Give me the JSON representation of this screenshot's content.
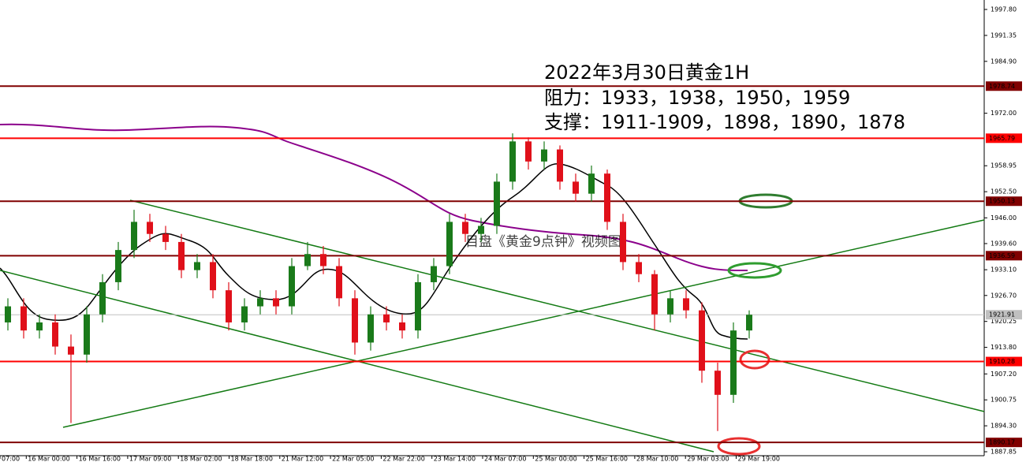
{
  "chart_data": {
    "type": "candlestick",
    "annotations": [
      "2022年3月30日黄金1H",
      "阻力：1933，1938，1950，1959",
      "支撑：1911-1909，1898，1890，1878"
    ],
    "watermark": "目盘《黄金9点钟》视频图",
    "categories": [
      "07:00",
      "16 Mar 00:00",
      "16 Mar 16:00",
      "17 Mar 09:00",
      "18 Mar 02:00",
      "18 Mar 18:00",
      "21 Mar 12:00",
      "22 Mar 05:00",
      "22 Mar 22:00",
      "23 Mar 14:00",
      "24 Mar 07:00",
      "25 Mar 00:00",
      "25 Mar 16:00",
      "28 Mar 10:00",
      "29 Mar 03:00",
      "29 Mar 19:00"
    ],
    "up_color": "#1a7a1a",
    "down_color": "#e0101a",
    "open": [
      1920,
      1924,
      1918,
      1920,
      1914,
      1912,
      1922,
      1930,
      1938,
      1945,
      1942,
      1940,
      1933,
      1935,
      1928,
      1920,
      1924,
      1926,
      1924,
      1934,
      1937,
      1934,
      1926,
      1915,
      1922,
      1920,
      1918,
      1930,
      1934,
      1945,
      1942,
      1944,
      1955,
      1965,
      1960,
      1963,
      1955,
      1952,
      1957,
      1945,
      1935,
      1932,
      1922,
      1926,
      1923,
      1908,
      1902,
      1918
    ],
    "high": [
      1926,
      1926,
      1922,
      1922,
      1917,
      1924,
      1932,
      1940,
      1948,
      1947,
      1944,
      1942,
      1937,
      1937,
      1930,
      1926,
      1928,
      1928,
      1936,
      1940,
      1939,
      1936,
      1928,
      1924,
      1924,
      1922,
      1932,
      1936,
      1947,
      1947,
      1946,
      1957,
      1967,
      1966,
      1965,
      1964,
      1957,
      1959,
      1958,
      1947,
      1937,
      1933,
      1928,
      1928,
      1925,
      1910,
      1920,
      1923
    ],
    "low": [
      1918,
      1916,
      1916,
      1912,
      1895,
      1910,
      1920,
      1928,
      1936,
      1940,
      1938,
      1931,
      1931,
      1926,
      1918,
      1918,
      1922,
      1922,
      1922,
      1933,
      1932,
      1924,
      1912,
      1913,
      1918,
      1916,
      1916,
      1928,
      1932,
      1940,
      1940,
      1942,
      1953,
      1958,
      1958,
      1953,
      1950,
      1950,
      1943,
      1933,
      1930,
      1918,
      1920,
      1921,
      1905,
      1893,
      1900,
      1916
    ],
    "close": [
      1924,
      1918,
      1920,
      1914,
      1912,
      1922,
      1930,
      1938,
      1945,
      1942,
      1940,
      1933,
      1935,
      1928,
      1920,
      1924,
      1926,
      1924,
      1934,
      1937,
      1934,
      1926,
      1915,
      1922,
      1920,
      1918,
      1930,
      1934,
      1945,
      1942,
      1944,
      1955,
      1965,
      1960,
      1963,
      1955,
      1952,
      1957,
      1945,
      1935,
      1932,
      1922,
      1926,
      1923,
      1908,
      1902,
      1918,
      1921.91
    ],
    "ylim": [
      1887.85,
      1997.8
    ],
    "yticks": [
      {
        "value": 1997.8,
        "label": "1997.80"
      },
      1991.35,
      {
        "value": 1984.9,
        "label": "1984.90"
      },
      {
        "value": 1972.0,
        "label": "1972.00"
      },
      1958.95,
      {
        "value": 1952.5,
        "label": "1952.50"
      },
      {
        "value": 1946.0,
        "label": "1946.00"
      },
      {
        "value": 1939.6,
        "label": "1939.60"
      },
      {
        "value": 1933.1,
        "label": "1933.10"
      },
      {
        "value": 1926.7,
        "label": "1926.70"
      },
      1920.25,
      {
        "value": 1913.8,
        "label": "1913.80"
      },
      {
        "value": 1907.2,
        "label": "1907.20"
      },
      1900.75,
      {
        "value": 1894.3,
        "label": "1894.30"
      },
      1887.85
    ],
    "levels": [
      {
        "value": 1978.74,
        "color": "#800000"
      },
      {
        "value": 1965.79,
        "color": "#ff0000"
      },
      {
        "value": 1950.13,
        "color": "#800000"
      },
      {
        "value": 1936.59,
        "color": "#800000"
      },
      {
        "value": 1910.28,
        "color": "#ff0000"
      },
      {
        "value": 1890.17,
        "color": "#800000"
      }
    ],
    "current_price": {
      "value": 1921.91,
      "color": "#c0c0c0"
    }
  }
}
